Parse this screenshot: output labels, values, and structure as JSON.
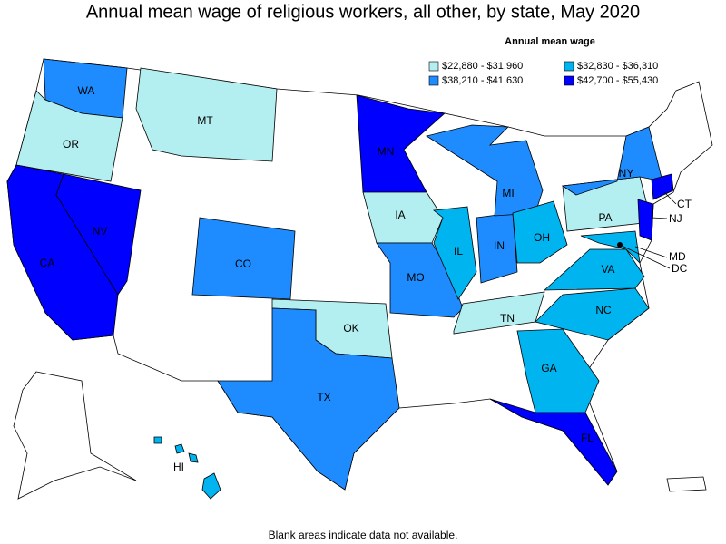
{
  "title": "Annual mean wage of religious workers, all other, by state, May 2020",
  "legend": {
    "title": "Annual mean wage",
    "items": [
      {
        "label": "$22,880 - $31,960",
        "color": "#b3eef0",
        "states": [
          "OR",
          "MT",
          "IA",
          "OK",
          "PA",
          "TN"
        ]
      },
      {
        "label": "$32,830 - $36,310",
        "color": "#00b4f0",
        "states": [
          "IL",
          "OH",
          "VA",
          "NC",
          "GA",
          "MD",
          "DC",
          "HI"
        ]
      },
      {
        "label": "$38,210 - $41,630",
        "color": "#1e8cff",
        "states": [
          "WA",
          "CO",
          "MO",
          "TX",
          "IN",
          "MI",
          "NY"
        ]
      },
      {
        "label": "$42,700 - $55,430",
        "color": "#0000ff",
        "states": [
          "CA",
          "NV",
          "MN",
          "FL",
          "NJ",
          "CT"
        ]
      }
    ]
  },
  "note": "Blank areas indicate data not available."
}
